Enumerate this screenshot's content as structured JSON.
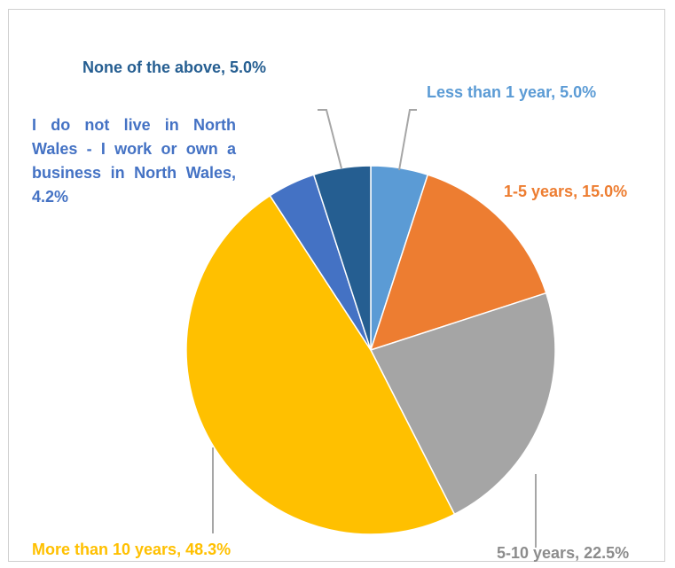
{
  "chart_data": {
    "type": "pie",
    "title": "",
    "slices": [
      {
        "label": "Less than 1 year",
        "value": 5.0,
        "display": "Less than 1 year, 5.0%",
        "color": "#5b9bd5"
      },
      {
        "label": "1-5 years",
        "value": 15.0,
        "display": "1-5 years, 15.0%",
        "color": "#ed7d31"
      },
      {
        "label": "5-10 years",
        "value": 22.5,
        "display": "5-10 years, 22.5%",
        "color": "#a5a5a5"
      },
      {
        "label": "More than 10 years",
        "value": 48.3,
        "display": "More than 10 years, 48.3%",
        "color": "#ffc000"
      },
      {
        "label": "I do not live in North Wales - I work or own a business in North Wales",
        "value": 4.2,
        "display": "I do not live in North Wales - I work or own a business in North Wales, 4.2%",
        "color": "#4472c4"
      },
      {
        "label": "None of the above",
        "value": 5.0,
        "display": "None of the above, 5.0%",
        "color": "#255e91"
      }
    ]
  }
}
